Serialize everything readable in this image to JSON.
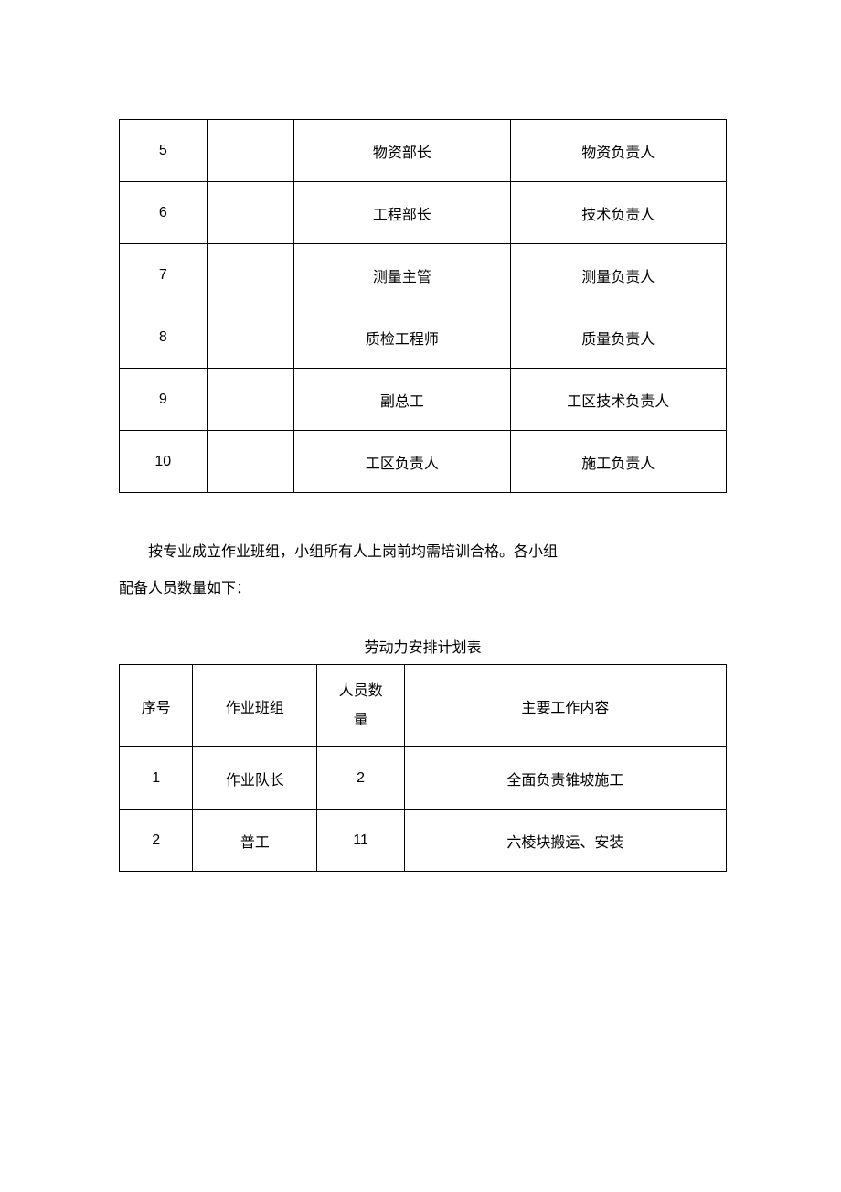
{
  "table1": {
    "rows": [
      {
        "num": "5",
        "role": "物资部长",
        "resp": "物资负责人"
      },
      {
        "num": "6",
        "role": "工程部长",
        "resp": "技术负责人"
      },
      {
        "num": "7",
        "role": "测量主管",
        "resp": "测量负责人"
      },
      {
        "num": "8",
        "role": "质检工程师",
        "resp": "质量负责人"
      },
      {
        "num": "9",
        "role": "副总工",
        "resp": "工区技术负责人"
      },
      {
        "num": "10",
        "role": "工区负责人",
        "resp": "施工负责人"
      }
    ]
  },
  "paragraph": {
    "line1": "按专业成立作业班组，小组所有人上岗前均需培训合格。各小组",
    "line2": "配备人员数量如下："
  },
  "table2": {
    "title": "劳动力安排计划表",
    "headers": {
      "num": "序号",
      "team": "作业班组",
      "count_l1": "人员数",
      "count_l2": "量",
      "work": "主要工作内容"
    },
    "rows": [
      {
        "num": "1",
        "team": "作业队长",
        "count": "2",
        "work": "全面负责锥坡施工"
      },
      {
        "num": "2",
        "team": "普工",
        "count": "11",
        "work": "六棱块搬运、安装"
      }
    ]
  },
  "colors": {
    "border": "#000000",
    "text": "#000000",
    "background": "#ffffff"
  }
}
